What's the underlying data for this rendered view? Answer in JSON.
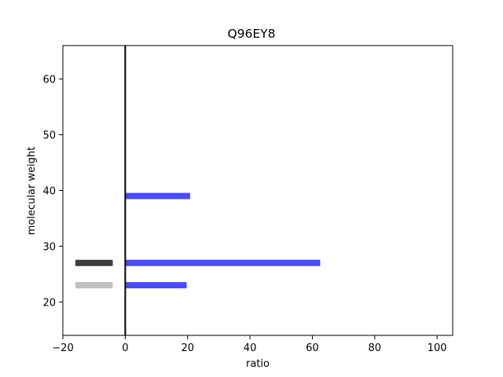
{
  "chart_data": {
    "type": "bar",
    "orientation": "horizontal",
    "title": "Q96EY8",
    "xlabel": "ratio",
    "ylabel": "molecular weight",
    "xlim": [
      -20,
      105
    ],
    "ylim": [
      14,
      66
    ],
    "xticks": [
      "−20",
      "0",
      "20",
      "40",
      "60",
      "80",
      "100"
    ],
    "yticks": [
      "20",
      "30",
      "40",
      "50",
      "60"
    ],
    "xtick_values": [
      -20,
      0,
      20,
      40,
      60,
      80,
      100
    ],
    "ytick_values": [
      20,
      30,
      40,
      50,
      60
    ],
    "grid": false,
    "zero_line": true,
    "series": [
      {
        "color": "#4b4bf0",
        "points": [
          {
            "y": 39,
            "x": 20.8
          },
          {
            "y": 27,
            "x": 62.5
          },
          {
            "y": 23,
            "x": 19.7
          }
        ]
      }
    ],
    "markers": [
      {
        "y": 27,
        "x_start": -16,
        "x_end": -4,
        "color": "#3d3d3a"
      },
      {
        "y": 23,
        "x_start": -16,
        "x_end": -4,
        "color": "#c0c0c0"
      }
    ],
    "colors": {
      "bar": "#4b4bf0",
      "marker_dark": "#3d3d3a",
      "marker_light": "#c0c0c0",
      "axis": "#000000"
    }
  }
}
